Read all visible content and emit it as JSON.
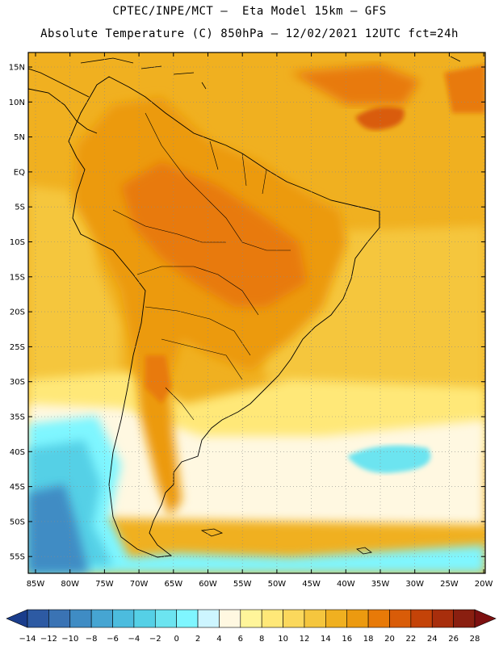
{
  "header": {
    "line1": "CPTEC/INPE/MCT —  Eta Model 15km — GFS",
    "line2": "Absolute Temperature (C) 850hPa — 12/02/2021 12UTC fct=24h"
  },
  "axes": {
    "lat_labels": [
      "15N",
      "10N",
      "5N",
      "EQ",
      "5S",
      "10S",
      "15S",
      "20S",
      "25S",
      "30S",
      "35S",
      "40S",
      "45S",
      "50S",
      "55S"
    ],
    "lon_labels": [
      "85W",
      "80W",
      "75W",
      "70W",
      "65W",
      "60W",
      "55W",
      "50W",
      "45W",
      "40W",
      "35W",
      "30W",
      "25W",
      "20W"
    ]
  },
  "colorbar": {
    "labels": [
      "-14",
      "-12",
      "-10",
      "-8",
      "-6",
      "-4",
      "-2",
      "0",
      "2",
      "4",
      "6",
      "8",
      "10",
      "12",
      "14",
      "16",
      "18",
      "20",
      "22",
      "24",
      "26",
      "28"
    ],
    "colors": [
      "#1a3d8c",
      "#2d5aa3",
      "#3a73b4",
      "#3f8cc4",
      "#46a5d2",
      "#4cbcde",
      "#55d0e6",
      "#6ce4f0",
      "#7ff6ff",
      "#cdf5ff",
      "#fff8e1",
      "#fff59a",
      "#ffe878",
      "#fbd85c",
      "#f5c63e",
      "#f0b020",
      "#ec9a10",
      "#e87a08",
      "#d95c08",
      "#c44308",
      "#a82e0c",
      "#8a1f10",
      "#7d1010"
    ]
  },
  "palette": {
    "hot": "#ec9a10",
    "warm": "#f0b020",
    "mild": "#f5c63e",
    "cool": "#fff8e1",
    "cold": "#7ff6ff"
  }
}
